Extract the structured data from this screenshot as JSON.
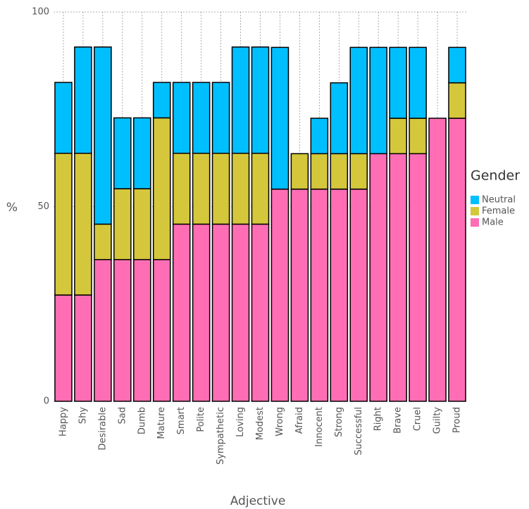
{
  "chart_data": {
    "type": "stacked_bar",
    "x_label": "Adjective",
    "y_label": "%",
    "legend_title": "Gender",
    "categories": [
      "Happy",
      "Shy",
      "Desirable",
      "Sad",
      "Dumb",
      "Mature",
      "Smart",
      "Polite",
      "Sympathetic",
      "Loving",
      "Modest",
      "Wrong",
      "Afraid",
      "Innocent",
      "Strong",
      "Successful",
      "Right",
      "Brave",
      "Cruel",
      "Guilty",
      "Proud"
    ],
    "series": [
      {
        "name": "Neutral",
        "color": "#00bfff",
        "values": [
          18.2,
          27.3,
          45.5,
          18.2,
          18.2,
          9.1,
          18.2,
          18.2,
          18.2,
          27.3,
          27.3,
          36.4,
          0,
          9.1,
          18.2,
          27.3,
          27.3,
          18.2,
          18.2,
          0,
          9.1
        ]
      },
      {
        "name": "Female",
        "color": "#d4c73b",
        "values": [
          36.4,
          36.4,
          9.1,
          18.2,
          18.2,
          36.4,
          18.2,
          18.2,
          18.2,
          18.2,
          18.2,
          0,
          9.1,
          9.1,
          9.1,
          9.1,
          0,
          9.1,
          9.1,
          0,
          9.1
        ]
      },
      {
        "name": "Male",
        "color": "#ff6eb4",
        "values": [
          27.3,
          27.3,
          36.4,
          36.4,
          36.4,
          36.4,
          45.5,
          45.5,
          45.5,
          45.5,
          45.5,
          54.5,
          54.5,
          54.5,
          54.5,
          54.5,
          63.6,
          63.6,
          63.6,
          72.7,
          72.7
        ]
      }
    ],
    "ylim": [
      0,
      100
    ],
    "yticks": [
      0,
      50,
      100
    ],
    "grid": true,
    "legend_position": "right"
  }
}
